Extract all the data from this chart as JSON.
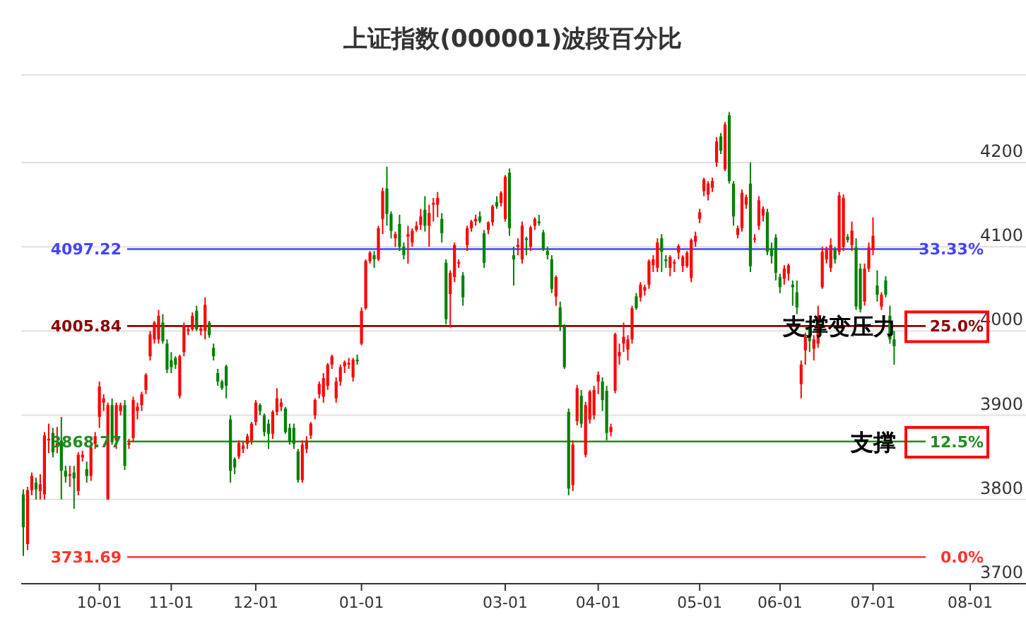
{
  "chart_data": {
    "type": "candlestick",
    "title": "上证指数(000001)波段百分比",
    "categories": [
      null,
      null,
      null,
      null,
      null,
      null,
      null,
      null,
      null,
      null,
      null,
      null,
      null,
      null,
      null,
      null,
      null,
      null,
      "10-01",
      null,
      null,
      null,
      null,
      null,
      null,
      null,
      null,
      null,
      null,
      null,
      null,
      null,
      null,
      null,
      null,
      "11-01",
      null,
      null,
      null,
      null,
      null,
      null,
      null,
      null,
      null,
      null,
      null,
      null,
      null,
      null,
      null,
      null,
      null,
      null,
      null,
      "12-01",
      null,
      null,
      null,
      null,
      null,
      null,
      null,
      null,
      null,
      null,
      null,
      null,
      null,
      null,
      null,
      null,
      null,
      null,
      null,
      null,
      null,
      null,
      null,
      null,
      "01-01",
      null,
      null,
      null,
      null,
      null,
      null,
      null,
      null,
      null,
      null,
      null,
      null,
      null,
      null,
      null,
      null,
      null,
      null,
      null,
      null,
      null,
      null,
      null,
      null,
      null,
      null,
      null,
      null,
      null,
      null,
      null,
      null,
      null,
      "03-01",
      null,
      null,
      null,
      null,
      null,
      null,
      null,
      null,
      null,
      null,
      null,
      null,
      null,
      null,
      null,
      null,
      null,
      null,
      null,
      null,
      null,
      "04-01",
      null,
      null,
      null,
      null,
      null,
      null,
      null,
      null,
      null,
      null,
      null,
      null,
      null,
      null,
      null,
      null,
      null,
      null,
      null,
      null,
      null,
      null,
      null,
      "05-01",
      null,
      null,
      null,
      null,
      null,
      null,
      null,
      null,
      null,
      null,
      null,
      null,
      null,
      null,
      null,
      null,
      null,
      null,
      "06-01",
      null,
      null,
      null,
      null,
      null,
      null,
      null,
      null,
      null,
      null,
      null,
      null,
      null,
      null,
      null,
      null,
      null,
      null,
      null,
      null,
      null,
      "07-01",
      null,
      null,
      null,
      null,
      null,
      null,
      null,
      null,
      null,
      null,
      null,
      null,
      null,
      null,
      null,
      null,
      null,
      null,
      null,
      null,
      null,
      null,
      "08-01",
      null,
      null,
      null,
      null
    ],
    "ohlc": [
      [
        3806,
        3812,
        3733,
        3767
      ],
      [
        3747,
        3815,
        3740,
        3811
      ],
      [
        3811,
        3832,
        3805,
        3828
      ],
      [
        3820,
        3826,
        3800,
        3812
      ],
      [
        3810,
        3830,
        3800,
        3818
      ],
      [
        3806,
        3880,
        3800,
        3876
      ],
      [
        3870,
        3890,
        3855,
        3872
      ],
      [
        3879,
        3885,
        3850,
        3856
      ],
      [
        3862,
        3886,
        3855,
        3867
      ],
      [
        3870,
        3898,
        3800,
        3834
      ],
      [
        3834,
        3840,
        3820,
        3827
      ],
      [
        3828,
        3840,
        3815,
        3830
      ],
      [
        3832,
        3840,
        3789,
        3825
      ],
      [
        3810,
        3856,
        3805,
        3853
      ],
      [
        3850,
        3858,
        3845,
        3853
      ],
      [
        3836,
        3845,
        3820,
        3828
      ],
      [
        3828,
        3866,
        3822,
        3862
      ],
      [
        3866,
        3880,
        3860,
        3875
      ],
      [
        3898,
        3940,
        3885,
        3934
      ],
      [
        3915,
        3925,
        3905,
        3920
      ],
      [
        3800,
        3915,
        3800,
        3912
      ],
      [
        3912,
        3920,
        3865,
        3868
      ],
      [
        3870,
        3915,
        3860,
        3912
      ],
      [
        3905,
        3915,
        3900,
        3912
      ],
      [
        3912,
        3918,
        3835,
        3840
      ],
      [
        3865,
        3872,
        3860,
        3867
      ],
      [
        3873,
        3922,
        3868,
        3918
      ],
      [
        3905,
        3915,
        3895,
        3910
      ],
      [
        3912,
        3928,
        3905,
        3925
      ],
      [
        3930,
        3950,
        3925,
        3948
      ],
      [
        3970,
        4000,
        3965,
        3996
      ],
      [
        3990,
        4012,
        3985,
        4010
      ],
      [
        3990,
        4025,
        3985,
        4018
      ],
      [
        4010,
        4020,
        3985,
        3988
      ],
      [
        3985,
        3990,
        3950,
        3954
      ],
      [
        3965,
        3975,
        3950,
        3957
      ],
      [
        3968,
        3970,
        3955,
        3960
      ],
      [
        3923,
        3972,
        3920,
        3970
      ],
      [
        3975,
        4010,
        3970,
        4007
      ],
      [
        4000,
        4005,
        3995,
        4002
      ],
      [
        4002,
        4022,
        4000,
        4018
      ],
      [
        4024,
        4030,
        4000,
        4002
      ],
      [
        4000,
        4005,
        3995,
        4003
      ],
      [
        4000,
        4040,
        3990,
        4031
      ],
      [
        4010,
        4012,
        3992,
        3995
      ],
      [
        3980,
        3985,
        3965,
        3970
      ],
      [
        3950,
        3955,
        3935,
        3940
      ],
      [
        3940,
        3942,
        3930,
        3932
      ],
      [
        3958,
        3960,
        3920,
        3935
      ],
      [
        3895,
        3900,
        3820,
        3834
      ],
      [
        3848,
        3850,
        3830,
        3838
      ],
      [
        3851,
        3870,
        3848,
        3867
      ],
      [
        3860,
        3868,
        3855,
        3864
      ],
      [
        3866,
        3878,
        3860,
        3875
      ],
      [
        3870,
        3892,
        3865,
        3890
      ],
      [
        3892,
        3918,
        3888,
        3915
      ],
      [
        3912,
        3914,
        3900,
        3905
      ],
      [
        3900,
        3902,
        3875,
        3880
      ],
      [
        3890,
        3895,
        3860,
        3878
      ],
      [
        3878,
        3906,
        3872,
        3904
      ],
      [
        3904,
        3932,
        3900,
        3920
      ],
      [
        3910,
        3920,
        3905,
        3915
      ],
      [
        3908,
        3910,
        3878,
        3880
      ],
      [
        3885,
        3890,
        3865,
        3868
      ],
      [
        3885,
        3890,
        3860,
        3866
      ],
      [
        3857,
        3860,
        3820,
        3823
      ],
      [
        3823,
        3870,
        3820,
        3865
      ],
      [
        3860,
        3875,
        3855,
        3870
      ],
      [
        3876,
        3892,
        3872,
        3890
      ],
      [
        3900,
        3920,
        3895,
        3918
      ],
      [
        3925,
        3940,
        3920,
        3937
      ],
      [
        3922,
        3950,
        3915,
        3944
      ],
      [
        3935,
        3962,
        3930,
        3960
      ],
      [
        3960,
        3972,
        3955,
        3970
      ],
      [
        3920,
        3945,
        3915,
        3940
      ],
      [
        3940,
        3960,
        3935,
        3957
      ],
      [
        3958,
        3965,
        3950,
        3963
      ],
      [
        3960,
        3968,
        3955,
        3962
      ],
      [
        3945,
        3968,
        3940,
        3966
      ],
      [
        3966,
        3972,
        3960,
        3964
      ],
      [
        3985,
        4028,
        3983,
        4024
      ],
      [
        4027,
        4085,
        4025,
        4083
      ],
      [
        4083,
        4095,
        4080,
        4093
      ],
      [
        4090,
        4095,
        4075,
        4085
      ],
      [
        4085,
        4125,
        4083,
        4122
      ],
      [
        4133,
        4170,
        4115,
        4166
      ],
      [
        4169,
        4195,
        4125,
        4139
      ],
      [
        4139,
        4142,
        4110,
        4119
      ],
      [
        4110,
        4118,
        4100,
        4115
      ],
      [
        4127,
        4138,
        4095,
        4100
      ],
      [
        4100,
        4105,
        4085,
        4090
      ],
      [
        4112,
        4125,
        4080,
        4115
      ],
      [
        4105,
        4122,
        4100,
        4119
      ],
      [
        4120,
        4130,
        4118,
        4125
      ],
      [
        4126,
        4145,
        4120,
        4136
      ],
      [
        4144,
        4160,
        4118,
        4125
      ],
      [
        4125,
        4150,
        4100,
        4140
      ],
      [
        4150,
        4158,
        4130,
        4152
      ],
      [
        4150,
        4165,
        4135,
        4158
      ],
      [
        4133,
        4140,
        4105,
        4116
      ],
      [
        4081,
        4085,
        4008,
        4014
      ],
      [
        4044,
        4072,
        4004,
        4069
      ],
      [
        4064,
        4105,
        4058,
        4102
      ],
      [
        4080,
        4085,
        4075,
        4082
      ],
      [
        4066,
        4070,
        4030,
        4040
      ],
      [
        4102,
        4125,
        4095,
        4122
      ],
      [
        4122,
        4132,
        4118,
        4130
      ],
      [
        4130,
        4138,
        4125,
        4133
      ],
      [
        4136,
        4142,
        4128,
        4130
      ],
      [
        4116,
        4120,
        4075,
        4081
      ],
      [
        4120,
        4130,
        4115,
        4129
      ],
      [
        4129,
        4150,
        4125,
        4148
      ],
      [
        4153,
        4160,
        4145,
        4148
      ],
      [
        4152,
        4166,
        4148,
        4164
      ],
      [
        4133,
        4185,
        4130,
        4183
      ],
      [
        4188,
        4193,
        4113,
        4122
      ],
      [
        4090,
        4100,
        4054,
        4085
      ],
      [
        4100,
        4110,
        4090,
        4102
      ],
      [
        4085,
        4130,
        4080,
        4125
      ],
      [
        4110,
        4112,
        4090,
        4108
      ],
      [
        4100,
        4125,
        4095,
        4123
      ],
      [
        4125,
        4135,
        4120,
        4133
      ],
      [
        4130,
        4138,
        4125,
        4128
      ],
      [
        4117,
        4120,
        4095,
        4097
      ],
      [
        4095,
        4100,
        4085,
        4090
      ],
      [
        4085,
        4090,
        4045,
        4050
      ],
      [
        4041,
        4066,
        4030,
        4064
      ],
      [
        4028,
        4035,
        4000,
        4007
      ],
      [
        4006,
        4008,
        3955,
        3957
      ],
      [
        3904,
        3908,
        3805,
        3813
      ],
      [
        3817,
        3870,
        3810,
        3865
      ],
      [
        3893,
        3936,
        3888,
        3932
      ],
      [
        3923,
        3930,
        3885,
        3890
      ],
      [
        3853,
        3916,
        3850,
        3912
      ],
      [
        3895,
        3930,
        3890,
        3928
      ],
      [
        3900,
        3935,
        3895,
        3930
      ],
      [
        3940,
        3952,
        3925,
        3948
      ],
      [
        3940,
        3945,
        3905,
        3918
      ],
      [
        3929,
        3935,
        3870,
        3879
      ],
      [
        3880,
        3890,
        3875,
        3886
      ],
      [
        3929,
        3998,
        3926,
        3996
      ],
      [
        3970,
        3985,
        3960,
        3975
      ],
      [
        3985,
        4010,
        3975,
        3993
      ],
      [
        3978,
        3995,
        3965,
        3990
      ],
      [
        3990,
        4030,
        3985,
        4027
      ],
      [
        4041,
        4045,
        4025,
        4027
      ],
      [
        4040,
        4058,
        4035,
        4055
      ],
      [
        4048,
        4055,
        4042,
        4052
      ],
      [
        4055,
        4085,
        4050,
        4083
      ],
      [
        4078,
        4090,
        4070,
        4085
      ],
      [
        4075,
        4110,
        4070,
        4105
      ],
      [
        4110,
        4115,
        4070,
        4094
      ],
      [
        4085,
        4090,
        4075,
        4083
      ],
      [
        4075,
        4090,
        4065,
        4088
      ],
      [
        4080,
        4085,
        4070,
        4082
      ],
      [
        4093,
        4103,
        4085,
        4101
      ],
      [
        4077,
        4090,
        4070,
        4088
      ],
      [
        4077,
        4095,
        4075,
        4093
      ],
      [
        4063,
        4110,
        4058,
        4108
      ],
      [
        4106,
        4118,
        4100,
        4113
      ],
      [
        4133,
        4145,
        4128,
        4141
      ],
      [
        4166,
        4182,
        4160,
        4180
      ],
      [
        4162,
        4178,
        4155,
        4175
      ],
      [
        4170,
        4182,
        4165,
        4178
      ],
      [
        4200,
        4230,
        4195,
        4225
      ],
      [
        4231,
        4235,
        4210,
        4214
      ],
      [
        4192,
        4248,
        4190,
        4245
      ],
      [
        4256,
        4260,
        4175,
        4178
      ],
      [
        4175,
        4178,
        4125,
        4136
      ],
      [
        4114,
        4125,
        4110,
        4122
      ],
      [
        4122,
        4168,
        4118,
        4164
      ],
      [
        4150,
        4162,
        4145,
        4159
      ],
      [
        4175,
        4200,
        4070,
        4077
      ],
      [
        4110,
        4115,
        4105,
        4110
      ],
      [
        4125,
        4160,
        4120,
        4155
      ],
      [
        4137,
        4148,
        4130,
        4145
      ],
      [
        4141,
        4145,
        4090,
        4094
      ],
      [
        4098,
        4105,
        4080,
        4089
      ],
      [
        4111,
        4115,
        4060,
        4069
      ],
      [
        4064,
        4068,
        4045,
        4052
      ],
      [
        4062,
        4078,
        4055,
        4074
      ],
      [
        4068,
        4080,
        4060,
        4078
      ],
      [
        4055,
        4060,
        4030,
        4052
      ],
      [
        4046,
        4060,
        4020,
        4028
      ],
      [
        3937,
        3965,
        3920,
        3960
      ],
      [
        3977,
        3998,
        3960,
        3993
      ],
      [
        4002,
        4005,
        3975,
        3988
      ],
      [
        3979,
        3995,
        3965,
        3990
      ],
      [
        3985,
        4030,
        3980,
        4018
      ],
      [
        4052,
        4100,
        4050,
        4094
      ],
      [
        4085,
        4100,
        4080,
        4097
      ],
      [
        4075,
        4110,
        4070,
        4102
      ],
      [
        4097,
        4100,
        4080,
        4085
      ],
      [
        4094,
        4165,
        4090,
        4161
      ],
      [
        4100,
        4162,
        4095,
        4158
      ],
      [
        4112,
        4115,
        4105,
        4108
      ],
      [
        4102,
        4130,
        4095,
        4119
      ],
      [
        4099,
        4110,
        4025,
        4029
      ],
      [
        4074,
        4080,
        4022,
        4026
      ],
      [
        4035,
        4080,
        4030,
        4074
      ],
      [
        4074,
        4105,
        4070,
        4099
      ],
      [
        4096,
        4135,
        4090,
        4113
      ],
      [
        4054,
        4072,
        4035,
        4043
      ],
      [
        4029,
        4046,
        4025,
        4043
      ],
      [
        4060,
        4065,
        4040,
        4043
      ],
      [
        4018,
        4030,
        3985,
        3990
      ],
      [
        3990,
        4000,
        3960,
        3982
      ],
      null,
      null,
      null,
      null,
      null,
      null,
      null,
      null,
      null,
      null,
      null,
      null,
      null,
      null,
      null,
      null,
      null,
      null,
      null,
      null,
      null,
      null
    ],
    "colors": [
      "#008000",
      "#ff0000",
      "#ff0000",
      "#008000",
      "#ff0000",
      "#ff0000",
      "#ff0000",
      "#008000",
      "#ff0000",
      "#008000",
      "#008000",
      "#ff0000",
      "#008000",
      "#ff0000",
      "#ff0000",
      "#008000",
      "#ff0000",
      "#ff0000",
      "#ff0000",
      "#ff0000",
      "#ff0000",
      "#008000",
      "#ff0000",
      "#ff0000",
      "#008000",
      "#ff0000",
      "#ff0000",
      "#ff0000",
      "#ff0000",
      "#ff0000",
      "#ff0000",
      "#ff0000",
      "#ff0000",
      "#008000",
      "#008000",
      "#008000",
      "#008000",
      "#ff0000",
      "#ff0000",
      "#ff0000",
      "#ff0000",
      "#008000",
      "#ff0000",
      "#ff0000",
      "#008000",
      "#008000",
      "#008000",
      "#008000",
      "#008000",
      "#008000",
      "#008000",
      "#ff0000",
      "#ff0000",
      "#ff0000",
      "#ff0000",
      "#ff0000",
      "#008000",
      "#008000",
      "#008000",
      "#ff0000",
      "#ff0000",
      "#ff0000",
      "#008000",
      "#008000",
      "#008000",
      "#008000",
      "#ff0000",
      "#ff0000",
      "#ff0000",
      "#ff0000",
      "#ff0000",
      "#ff0000",
      "#ff0000",
      "#ff0000",
      "#ff0000",
      "#ff0000",
      "#ff0000",
      "#ff0000",
      "#ff0000",
      "#008000",
      "#ff0000",
      "#ff0000",
      "#ff0000",
      "#008000",
      "#ff0000",
      "#ff0000",
      "#008000",
      "#008000",
      "#ff0000",
      "#008000",
      "#008000",
      "#ff0000",
      "#ff0000",
      "#ff0000",
      "#ff0000",
      "#008000",
      "#ff0000",
      "#ff0000",
      "#ff0000",
      "#008000",
      "#008000",
      "#ff0000",
      "#ff0000",
      "#ff0000",
      "#008000",
      "#ff0000",
      "#ff0000",
      "#ff0000",
      "#008000",
      "#008000",
      "#ff0000",
      "#ff0000",
      "#008000",
      "#ff0000",
      "#ff0000",
      "#008000",
      "#008000",
      "#ff0000",
      "#ff0000",
      "#008000",
      "#ff0000",
      "#ff0000",
      "#008000",
      "#008000",
      "#008000",
      "#008000",
      "#ff0000",
      "#008000",
      "#008000",
      "#008000",
      "#ff0000",
      "#ff0000",
      "#008000",
      "#ff0000",
      "#ff0000",
      "#ff0000",
      "#ff0000",
      "#008000",
      "#008000",
      "#ff0000",
      "#ff0000",
      "#ff0000",
      "#ff0000",
      "#ff0000",
      "#ff0000",
      "#008000",
      "#ff0000",
      "#ff0000",
      "#ff0000",
      "#ff0000",
      "#ff0000",
      "#008000",
      "#008000",
      "#ff0000",
      "#ff0000",
      "#ff0000",
      "#ff0000",
      "#ff0000",
      "#ff0000",
      "#ff0000",
      "#ff0000",
      "#ff0000",
      "#ff0000",
      "#ff0000",
      "#ff0000",
      "#008000",
      "#ff0000",
      "#008000",
      "#008000",
      "#ff0000",
      "#ff0000",
      "#ff0000",
      "#008000",
      "#ff0000",
      "#ff0000",
      "#ff0000",
      "#008000",
      "#008000",
      "#008000",
      "#008000",
      "#ff0000",
      "#ff0000",
      "#008000",
      "#008000",
      "#ff0000",
      "#ff0000",
      "#008000",
      "#ff0000",
      "#ff0000",
      "#ff0000",
      "#ff0000",
      "#ff0000",
      "#008000",
      "#ff0000",
      "#ff0000",
      "#008000",
      "#ff0000",
      "#008000",
      "#008000",
      "#ff0000",
      "#ff0000",
      "#ff0000",
      "#008000",
      "#ff0000",
      "#008000",
      "#008000",
      "#008000",
      null,
      null,
      null,
      null,
      null,
      null,
      null,
      null,
      null,
      null,
      null,
      null,
      null,
      null,
      null,
      null,
      null,
      null,
      null,
      null,
      null,
      null
    ],
    "ylim": [
      3700,
      4304
    ],
    "yticks": [
      3700,
      3800,
      3900,
      4000,
      4100,
      4200
    ],
    "grid": "y",
    "ref_lines": [
      {
        "axis": "y",
        "value": 4097.22,
        "label": "4097.22",
        "color": "#4444ff"
      },
      {
        "axis": "y",
        "value": 4005.84,
        "label": "4005.84",
        "color": "#8b0000"
      },
      {
        "axis": "y",
        "value": 3868.77,
        "label": "3868.77",
        "color": "#228b22"
      },
      {
        "axis": "y",
        "value": 3731.69,
        "label": "3731.69",
        "color": "#ff3333"
      }
    ],
    "annotations": [
      "33.33%",
      "25.0%",
      "12.5%",
      "0.0%",
      {
        "text": "支撑变压力",
        "y": 4005.84
      },
      {
        "text": "支撑",
        "y": 3868.77
      }
    ]
  }
}
